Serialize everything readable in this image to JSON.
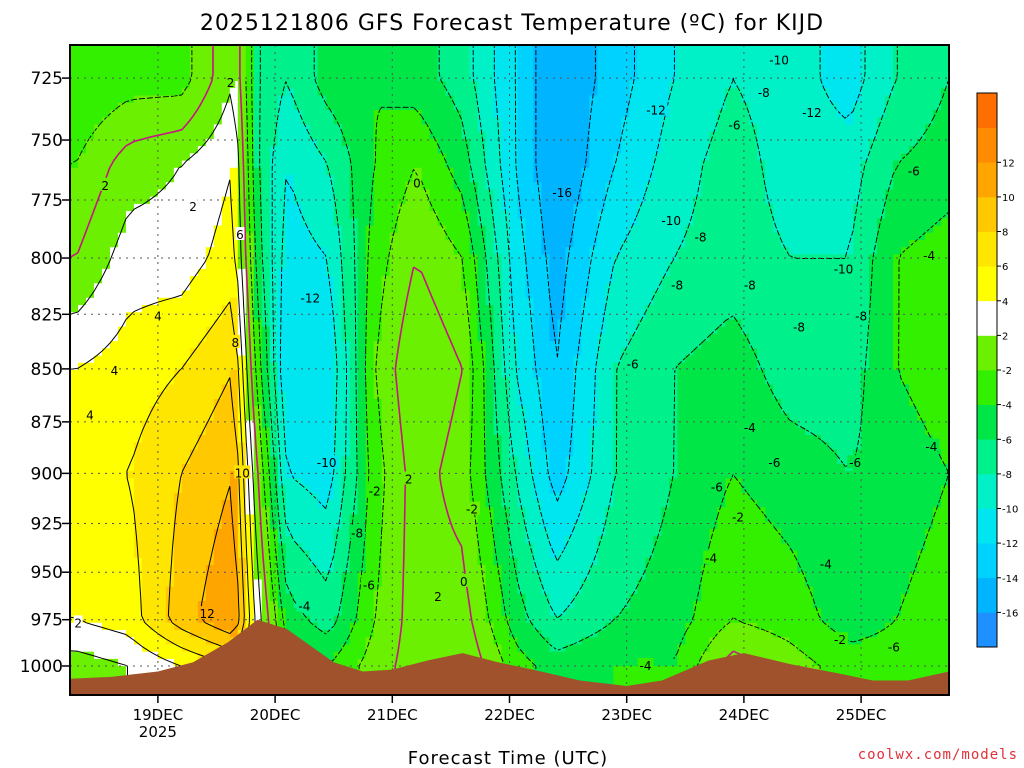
{
  "chart_data": {
    "type": "heatmap",
    "title": "2025121806 GFS Forecast Temperature (ºC) for KIJD",
    "xlabel": "Forecast Time (UTC)",
    "ylabel": "",
    "x_ticks": [
      {
        "label": "19DEC",
        "sub": "2025",
        "t": 1.0
      },
      {
        "label": "20DEC",
        "sub": "",
        "t": 2.0
      },
      {
        "label": "21DEC",
        "sub": "",
        "t": 3.0
      },
      {
        "label": "22DEC",
        "sub": "",
        "t": 4.0
      },
      {
        "label": "23DEC",
        "sub": "",
        "t": 5.0
      },
      {
        "label": "24DEC",
        "sub": "",
        "t": 6.0
      },
      {
        "label": "25DEC",
        "sub": "",
        "t": 7.0
      }
    ],
    "x_range_days": [
      0.25,
      7.75
    ],
    "y_ticks": [
      725,
      750,
      775,
      800,
      825,
      850,
      875,
      900,
      925,
      950,
      975,
      1000
    ],
    "y_range_hpa": [
      712,
      1016
    ],
    "colorbar": {
      "levels": [
        -18,
        -16,
        -14,
        -12,
        -10,
        -8,
        -6,
        -4,
        -2,
        2,
        4,
        6,
        8,
        10,
        12,
        14
      ],
      "tick_labels": [
        "-16",
        "-14",
        "-12",
        "-10",
        "-8",
        "-6",
        "-4",
        "-2",
        "2",
        "4",
        "6",
        "8",
        "10",
        "12"
      ],
      "colors": [
        "#1e90ff",
        "#00b4ff",
        "#00d2ff",
        "#00e6f0",
        "#00f0c8",
        "#00f08c",
        "#00e646",
        "#32f000",
        "#6af000",
        "#ffffff",
        "#ffff00",
        "#ffe600",
        "#ffc800",
        "#ffa500",
        "#ff8c00",
        "#ff6e00"
      ]
    },
    "temperature_anchors": [
      {
        "t": 0.3,
        "profile": [
          [
            725,
            -4
          ],
          [
            760,
            -2
          ],
          [
            800,
            0
          ],
          [
            850,
            4
          ],
          [
            900,
            6
          ],
          [
            975,
            4
          ],
          [
            1000,
            1
          ]
        ]
      },
      {
        "t": 0.75,
        "profile": [
          [
            725,
            -3
          ],
          [
            760,
            1
          ],
          [
            800,
            3
          ],
          [
            850,
            5
          ],
          [
            900,
            6
          ],
          [
            975,
            5
          ],
          [
            1000,
            2
          ]
        ]
      },
      {
        "t": 1.2,
        "profile": [
          [
            725,
            -3
          ],
          [
            760,
            2
          ],
          [
            800,
            3
          ],
          [
            850,
            6
          ],
          [
            900,
            8
          ],
          [
            975,
            9
          ],
          [
            1000,
            4
          ]
        ]
      },
      {
        "t": 1.65,
        "profile": [
          [
            725,
            2
          ],
          [
            760,
            4
          ],
          [
            800,
            5
          ],
          [
            850,
            8
          ],
          [
            900,
            10
          ],
          [
            975,
            12
          ],
          [
            1000,
            6
          ]
        ]
      },
      {
        "t": 1.85,
        "profile": [
          [
            725,
            -6
          ],
          [
            760,
            -6
          ],
          [
            800,
            -5
          ],
          [
            850,
            -3
          ],
          [
            900,
            0
          ],
          [
            975,
            3
          ],
          [
            1000,
            3
          ]
        ]
      },
      {
        "t": 2.1,
        "profile": [
          [
            725,
            -8
          ],
          [
            760,
            -10
          ],
          [
            800,
            -11
          ],
          [
            850,
            -12
          ],
          [
            900,
            -10
          ],
          [
            975,
            -5
          ],
          [
            1000,
            -3
          ]
        ]
      },
      {
        "t": 2.45,
        "profile": [
          [
            725,
            -5
          ],
          [
            760,
            -8
          ],
          [
            800,
            -10
          ],
          [
            850,
            -12
          ],
          [
            900,
            -11
          ],
          [
            975,
            -7
          ],
          [
            1000,
            -4
          ]
        ]
      },
      {
        "t": 2.85,
        "profile": [
          [
            725,
            -4
          ],
          [
            760,
            -4
          ],
          [
            800,
            -3
          ],
          [
            850,
            -2
          ],
          [
            900,
            -3
          ],
          [
            975,
            -2
          ],
          [
            1000,
            -1
          ]
        ]
      },
      {
        "t": 3.2,
        "profile": [
          [
            725,
            -5
          ],
          [
            760,
            -2
          ],
          [
            800,
            0
          ],
          [
            850,
            2
          ],
          [
            900,
            1
          ],
          [
            975,
            1
          ],
          [
            1000,
            1
          ]
        ]
      },
      {
        "t": 3.6,
        "profile": [
          [
            725,
            -7
          ],
          [
            760,
            -5
          ],
          [
            800,
            -2
          ],
          [
            850,
            0
          ],
          [
            900,
            -1
          ],
          [
            975,
            1
          ],
          [
            1000,
            2
          ]
        ]
      },
      {
        "t": 4.05,
        "profile": [
          [
            725,
            -12
          ],
          [
            760,
            -12
          ],
          [
            800,
            -11
          ],
          [
            850,
            -10
          ],
          [
            900,
            -8
          ],
          [
            975,
            -5
          ],
          [
            1000,
            -3
          ]
        ]
      },
      {
        "t": 4.4,
        "profile": [
          [
            725,
            -16
          ],
          [
            760,
            -16
          ],
          [
            800,
            -15
          ],
          [
            850,
            -14
          ],
          [
            900,
            -13
          ],
          [
            975,
            -8
          ],
          [
            1000,
            -5
          ]
        ]
      },
      {
        "t": 4.9,
        "profile": [
          [
            725,
            -13
          ],
          [
            760,
            -12
          ],
          [
            800,
            -10
          ],
          [
            850,
            -8
          ],
          [
            900,
            -8
          ],
          [
            975,
            -6
          ],
          [
            1000,
            -4
          ]
        ]
      },
      {
        "t": 5.4,
        "profile": [
          [
            725,
            -10
          ],
          [
            760,
            -9
          ],
          [
            800,
            -8
          ],
          [
            850,
            -6
          ],
          [
            900,
            -6
          ],
          [
            975,
            -5
          ],
          [
            1000,
            -4
          ]
        ]
      },
      {
        "t": 5.9,
        "profile": [
          [
            725,
            -8
          ],
          [
            760,
            -7
          ],
          [
            800,
            -7
          ],
          [
            850,
            -5
          ],
          [
            900,
            -4
          ],
          [
            975,
            -2
          ],
          [
            1000,
            1
          ]
        ]
      },
      {
        "t": 6.4,
        "profile": [
          [
            725,
            -9
          ],
          [
            760,
            -9
          ],
          [
            800,
            -8
          ],
          [
            850,
            -7
          ],
          [
            900,
            -5
          ],
          [
            975,
            -3
          ],
          [
            1000,
            -1
          ]
        ]
      },
      {
        "t": 6.9,
        "profile": [
          [
            725,
            -11
          ],
          [
            760,
            -9
          ],
          [
            800,
            -8
          ],
          [
            850,
            -7
          ],
          [
            900,
            -6
          ],
          [
            975,
            -5
          ],
          [
            1000,
            -3
          ]
        ]
      },
      {
        "t": 7.3,
        "profile": [
          [
            725,
            -8
          ],
          [
            760,
            -6
          ],
          [
            800,
            -4
          ],
          [
            850,
            -4
          ],
          [
            900,
            -5
          ],
          [
            975,
            -4
          ],
          [
            1000,
            -3
          ]
        ]
      },
      {
        "t": 7.75,
        "profile": [
          [
            725,
            -6
          ],
          [
            760,
            -5
          ],
          [
            800,
            -3
          ],
          [
            850,
            -3
          ],
          [
            900,
            -4
          ],
          [
            975,
            -3
          ],
          [
            1000,
            -2
          ]
        ]
      }
    ],
    "terrain_hpa": [
      [
        0.25,
        1007
      ],
      [
        0.6,
        1006
      ],
      [
        1.0,
        1003
      ],
      [
        1.3,
        998
      ],
      [
        1.6,
        987
      ],
      [
        1.85,
        975
      ],
      [
        2.1,
        980
      ],
      [
        2.5,
        998
      ],
      [
        2.75,
        1003
      ],
      [
        3.0,
        1002
      ],
      [
        3.3,
        997
      ],
      [
        3.6,
        993
      ],
      [
        3.9,
        998
      ],
      [
        4.2,
        1002
      ],
      [
        4.6,
        1008
      ],
      [
        5.0,
        1011
      ],
      [
        5.3,
        1008
      ],
      [
        5.7,
        997
      ],
      [
        6.0,
        993
      ],
      [
        6.4,
        999
      ],
      [
        6.8,
        1004
      ],
      [
        7.1,
        1008
      ],
      [
        7.4,
        1008
      ],
      [
        7.75,
        1003
      ]
    ],
    "contour_labels": [
      {
        "text": "2",
        "t": 1.62,
        "p": 727
      },
      {
        "text": "2",
        "t": 0.55,
        "p": 769
      },
      {
        "text": "2",
        "t": 1.3,
        "p": 778
      },
      {
        "text": "6",
        "t": 1.7,
        "p": 790
      },
      {
        "text": "4",
        "t": 1.0,
        "p": 826
      },
      {
        "text": "8",
        "t": 1.66,
        "p": 838
      },
      {
        "text": "4",
        "t": 0.63,
        "p": 851
      },
      {
        "text": "4",
        "t": 0.42,
        "p": 872
      },
      {
        "text": "10",
        "t": 1.72,
        "p": 900
      },
      {
        "text": "12",
        "t": 1.42,
        "p": 972
      },
      {
        "text": "2",
        "t": 0.32,
        "p": 977
      },
      {
        "text": "-12",
        "t": 2.3,
        "p": 818
      },
      {
        "text": "-10",
        "t": 2.44,
        "p": 895
      },
      {
        "text": "-8",
        "t": 2.7,
        "p": 930
      },
      {
        "text": "-6",
        "t": 2.8,
        "p": 957
      },
      {
        "text": "-4",
        "t": 2.25,
        "p": 968
      },
      {
        "text": "-2",
        "t": 2.85,
        "p": 909
      },
      {
        "text": "0",
        "t": 3.21,
        "p": 768
      },
      {
        "text": "2",
        "t": 3.14,
        "p": 903
      },
      {
        "text": "2",
        "t": 3.39,
        "p": 963
      },
      {
        "text": "0",
        "t": 3.61,
        "p": 955
      },
      {
        "text": "-2",
        "t": 3.68,
        "p": 918
      },
      {
        "text": "-16",
        "t": 4.45,
        "p": 772
      },
      {
        "text": "-12",
        "t": 5.25,
        "p": 738
      },
      {
        "text": "-10",
        "t": 5.38,
        "p": 784
      },
      {
        "text": "-8",
        "t": 5.63,
        "p": 791
      },
      {
        "text": "-8",
        "t": 5.43,
        "p": 812
      },
      {
        "text": "-6",
        "t": 5.05,
        "p": 848
      },
      {
        "text": "-4",
        "t": 5.16,
        "p": 1000
      },
      {
        "text": "-10",
        "t": 6.3,
        "p": 718
      },
      {
        "text": "-8",
        "t": 6.17,
        "p": 731
      },
      {
        "text": "-6",
        "t": 5.92,
        "p": 744
      },
      {
        "text": "-12",
        "t": 6.58,
        "p": 739
      },
      {
        "text": "-8",
        "t": 6.05,
        "p": 812
      },
      {
        "text": "-8",
        "t": 6.47,
        "p": 831
      },
      {
        "text": "-10",
        "t": 6.85,
        "p": 805
      },
      {
        "text": "-8",
        "t": 7.0,
        "p": 826
      },
      {
        "text": "-6",
        "t": 7.45,
        "p": 763
      },
      {
        "text": "-4",
        "t": 7.58,
        "p": 799
      },
      {
        "text": "-4",
        "t": 6.05,
        "p": 878
      },
      {
        "text": "-6",
        "t": 6.26,
        "p": 895
      },
      {
        "text": "-6",
        "t": 5.77,
        "p": 907
      },
      {
        "text": "-2",
        "t": 5.95,
        "p": 922
      },
      {
        "text": "-4",
        "t": 5.72,
        "p": 943
      },
      {
        "text": "-6",
        "t": 6.95,
        "p": 895
      },
      {
        "text": "-4",
        "t": 6.7,
        "p": 946
      },
      {
        "text": "-2",
        "t": 6.82,
        "p": 986
      },
      {
        "text": "-6",
        "t": 7.28,
        "p": 990
      },
      {
        "text": "-4",
        "t": 7.6,
        "p": 887
      }
    ]
  },
  "credit": "coolwx.com/models"
}
